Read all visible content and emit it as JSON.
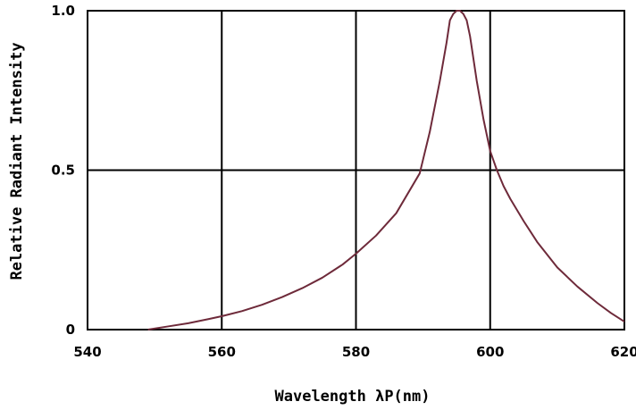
{
  "chart_data": {
    "type": "line",
    "title": "",
    "xlabel": "Wavelength λP(nm)",
    "ylabel": "Relative Radiant Intensity",
    "xlim": [
      540,
      620
    ],
    "ylim": [
      0,
      1.0
    ],
    "x_ticks": [
      "540",
      "560",
      "580",
      "600",
      "620"
    ],
    "y_ticks": [
      "0",
      "0.5",
      "1.0"
    ],
    "grid": true,
    "legend": "none",
    "line_color": "#6e2a3a",
    "series": [
      {
        "x": [
          549,
          552,
          555,
          558,
          560,
          563,
          566,
          569,
          572,
          575,
          578,
          580,
          583,
          586,
          589.5,
          591,
          592.5,
          593.5,
          594,
          594.5,
          595,
          595.5,
          596,
          596.5,
          597,
          598,
          599,
          600,
          601,
          602,
          603,
          605,
          607,
          610,
          613,
          616,
          618,
          620
        ],
        "y": [
          0.0,
          0.01,
          0.02,
          0.033,
          0.042,
          0.058,
          0.078,
          0.102,
          0.13,
          0.163,
          0.204,
          0.238,
          0.295,
          0.365,
          0.49,
          0.62,
          0.78,
          0.9,
          0.97,
          0.99,
          1.0,
          1.0,
          0.99,
          0.97,
          0.92,
          0.78,
          0.66,
          0.56,
          0.5,
          0.45,
          0.41,
          0.34,
          0.275,
          0.195,
          0.135,
          0.083,
          0.052,
          0.025
        ]
      }
    ]
  }
}
